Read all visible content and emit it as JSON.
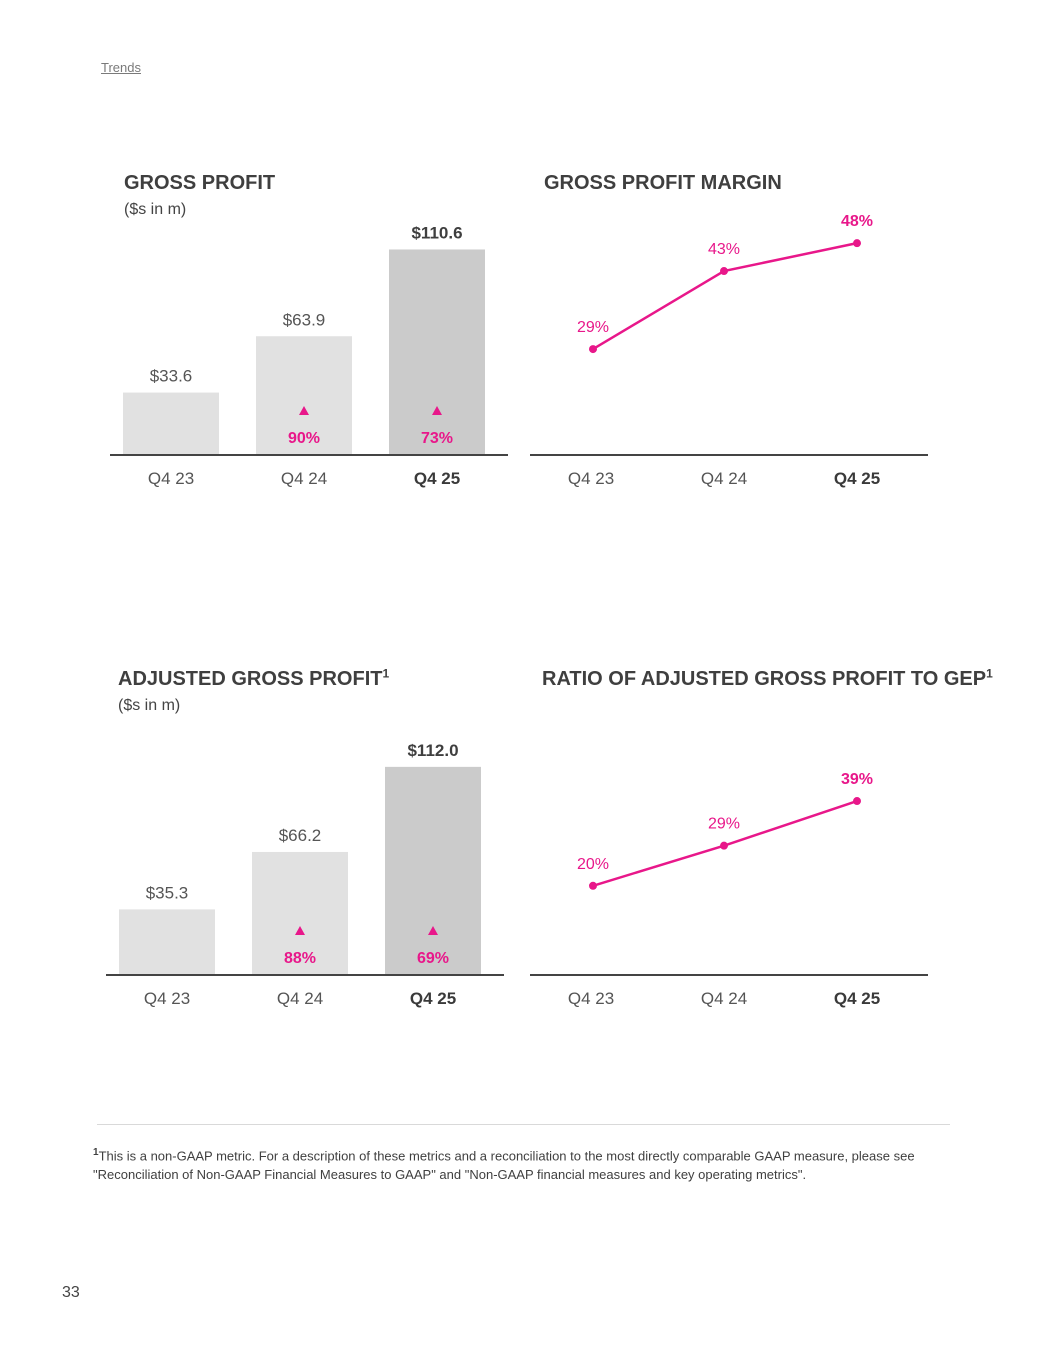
{
  "header": {
    "nav_link": "Trends"
  },
  "chart_data": [
    {
      "id": "gross_profit",
      "type": "bar",
      "title": "GROSS PROFIT",
      "title_sup": "",
      "subtitle": "($s in m)",
      "categories": [
        "Q4 23",
        "Q4 24",
        "Q4 25"
      ],
      "values": [
        33.6,
        63.9,
        110.6
      ],
      "value_labels": [
        "$33.6",
        "$63.9",
        "$110.6"
      ],
      "growth_labels": [
        "",
        "90%",
        "73%"
      ],
      "growth_icon": "up-triangle-icon",
      "ylim": [
        0,
        120
      ]
    },
    {
      "id": "gross_profit_margin",
      "type": "line",
      "title": "GROSS PROFIT MARGIN",
      "title_sup": "",
      "subtitle": "",
      "categories": [
        "Q4 23",
        "Q4 24",
        "Q4 25"
      ],
      "values": [
        29,
        43,
        48
      ],
      "value_labels": [
        "29%",
        "43%",
        "48%"
      ],
      "ylim": [
        10,
        50
      ]
    },
    {
      "id": "adjusted_gross_profit",
      "type": "bar",
      "title": "ADJUSTED GROSS PROFIT",
      "title_sup": "1",
      "subtitle": "($s in m)",
      "categories": [
        "Q4 23",
        "Q4 24",
        "Q4 25"
      ],
      "values": [
        35.3,
        66.2,
        112.0
      ],
      "value_labels": [
        "$35.3",
        "$66.2",
        "$112.0"
      ],
      "growth_labels": [
        "",
        "88%",
        "69%"
      ],
      "growth_icon": "up-triangle-icon",
      "ylim": [
        0,
        120
      ]
    },
    {
      "id": "ratio_adjusted_gp_to_gep",
      "type": "line",
      "title": "RATIO OF ADJUSTED GROSS PROFIT TO GEP",
      "title_sup": "1",
      "subtitle": "",
      "categories": [
        "Q4 23",
        "Q4 24",
        "Q4 25"
      ],
      "values": [
        20,
        29,
        39
      ],
      "value_labels": [
        "20%",
        "29%",
        "39%"
      ],
      "ylim": [
        0,
        50
      ]
    }
  ],
  "colors": {
    "accent": "#e8178a",
    "bar_light": "#e1e1e1",
    "bar_highlight": "#cbcbcb",
    "axis": "#444444",
    "text": "#444444"
  },
  "footnote": {
    "marker": "1",
    "text": "This is a non-GAAP metric. For a description of these metrics and a reconciliation to the most directly comparable GAAP measure, please see \"Reconciliation of Non-GAAP Financial Measures to GAAP\" and \"Non-GAAP financial measures and key operating metrics\"."
  },
  "page_number": "33"
}
